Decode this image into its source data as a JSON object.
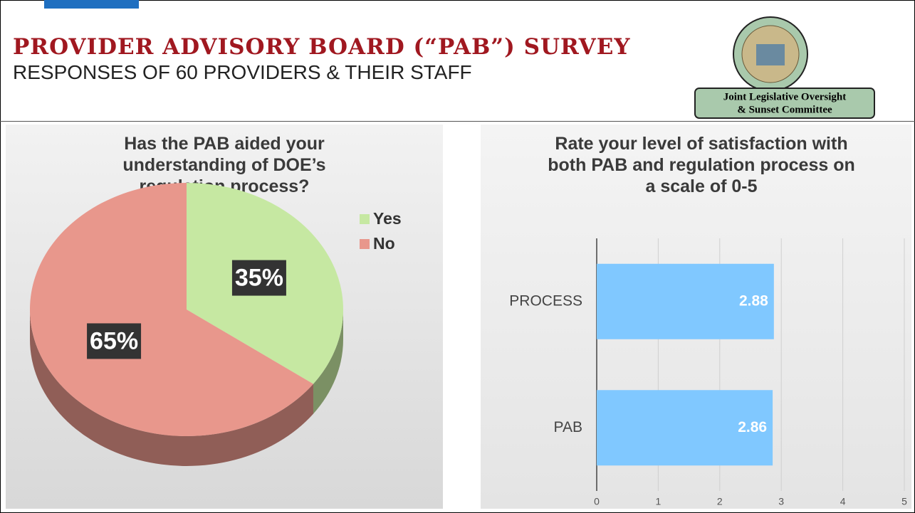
{
  "title": "PROVIDER ADVISORY BOARD (“PAB”) SURVEY",
  "subtitle": "RESPONSES OF 60 PROVIDERS & THEIR STAFF",
  "logo_text": [
    "Joint Legislative Oversight",
    "& Sunset Committee"
  ],
  "chart_data": [
    {
      "type": "pie",
      "title": "Has the PAB aided your understanding of DOE’s regulation process?",
      "categories": [
        "Yes",
        "No"
      ],
      "values": [
        35,
        65
      ],
      "value_labels": [
        "35%",
        "65%"
      ],
      "colors": [
        "#c6e8a2",
        "#e8978c"
      ],
      "legend": "top-right"
    },
    {
      "type": "bar",
      "orientation": "horizontal",
      "title": "Rate your level of satisfaction with both PAB and regulation process on a scale of 0-5",
      "categories": [
        "PROCESS",
        "PAB"
      ],
      "values": [
        2.88,
        2.86
      ],
      "color": "#80c8ff",
      "xlim": [
        0,
        5
      ],
      "xticks": [
        0,
        1,
        2,
        3,
        4,
        5
      ],
      "grid": true
    }
  ]
}
